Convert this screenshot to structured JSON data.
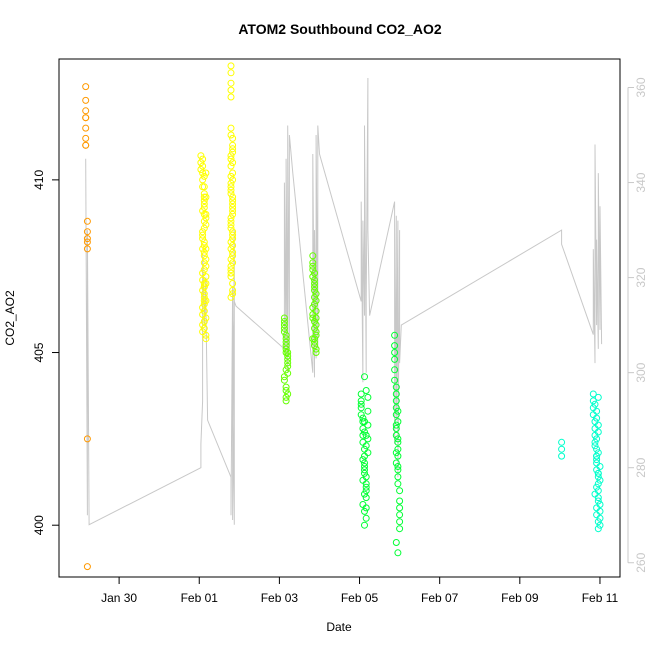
{
  "chart_data": {
    "type": "scatter",
    "title": "ATOM2 Southbound CO2_AO2",
    "xlabel": "Date",
    "ylabel": "CO2_AO2",
    "x_range_days": [
      "2018-01-28T12:00",
      "2018-02-11T12:00"
    ],
    "ylim": [
      398.5,
      413.5
    ],
    "ylim_right": [
      257,
      366
    ],
    "x_ticks": [
      {
        "label": "Jan 30",
        "date": "2018-01-30"
      },
      {
        "label": "Feb 01",
        "date": "2018-02-01"
      },
      {
        "label": "Feb 03",
        "date": "2018-02-03"
      },
      {
        "label": "Feb 05",
        "date": "2018-02-05"
      },
      {
        "label": "Feb 07",
        "date": "2018-02-07"
      },
      {
        "label": "Feb 09",
        "date": "2018-02-09"
      },
      {
        "label": "Feb 11",
        "date": "2018-02-11"
      }
    ],
    "y_ticks_left": [
      400,
      405,
      410
    ],
    "y_ticks_right": [
      260,
      280,
      300,
      320,
      340,
      360
    ],
    "grid": false,
    "right_axis_color": "#c8c8c8",
    "line_color": "#c8c8c8",
    "series": [
      {
        "color": "#ff9900",
        "x": [
          "2018-01-29T04:00",
          "2018-01-29T04:00",
          "2018-01-29T04:00",
          "2018-01-29T04:00",
          "2018-01-29T04:00",
          "2018-01-29T04:00",
          "2018-01-29T04:00",
          "2018-01-29T04:00",
          "2018-01-29T04:00",
          "2018-01-29T05:00",
          "2018-01-29T05:00",
          "2018-01-29T05:00",
          "2018-01-29T05:00",
          "2018-01-29T05:00",
          "2018-01-29T05:00",
          "2018-01-29T05:00"
        ],
        "y": [
          412.7,
          412.3,
          412.0,
          411.8,
          411.5,
          411.0,
          411.0,
          411.2,
          411.8,
          408.8,
          408.5,
          408.3,
          408.0,
          408.2,
          402.5,
          398.8
        ]
      },
      {
        "color": "#ffff00",
        "x": [
          "2018-02-01T01:00",
          "2018-02-01T01:00",
          "2018-02-01T01:00",
          "2018-02-01T02:00",
          "2018-02-01T02:00",
          "2018-02-01T02:00",
          "2018-02-01T03:00",
          "2018-02-01T03:00",
          "2018-02-01T03:00",
          "2018-02-01T04:00",
          "2018-02-01T04:00",
          "2018-02-01T02:00",
          "2018-02-01T02:00",
          "2018-02-01T03:00",
          "2018-02-01T03:00",
          "2018-02-01T04:00",
          "2018-02-01T04:00",
          "2018-02-01T02:00",
          "2018-02-01T02:00",
          "2018-02-01T03:00",
          "2018-02-01T03:00",
          "2018-02-01T03:00",
          "2018-02-01T02:00",
          "2018-02-01T02:00",
          "2018-02-01T03:00",
          "2018-02-01T03:00",
          "2018-02-01T04:00",
          "2018-02-01T02:00",
          "2018-02-01T03:00",
          "2018-02-01T03:00",
          "2018-02-01T02:00",
          "2018-02-01T03:00",
          "2018-02-01T04:00",
          "2018-02-01T02:00",
          "2018-02-01T03:00",
          "2018-02-01T03:00",
          "2018-02-01T03:00",
          "2018-02-01T02:00",
          "2018-02-01T03:00",
          "2018-02-01T04:00",
          "2018-02-01T02:00",
          "2018-02-01T03:00",
          "2018-02-01T03:00",
          "2018-02-01T03:00",
          "2018-02-01T04:00",
          "2018-02-01T02:00",
          "2018-02-01T03:00",
          "2018-02-01T03:00",
          "2018-02-01T03:00",
          "2018-02-01T03:00",
          "2018-02-01T03:00",
          "2018-02-01T03:00",
          "2018-02-01T02:00",
          "2018-02-01T02:00",
          "2018-02-01T04:00",
          "2018-02-01T04:00",
          "2018-02-01T04:00",
          "2018-02-01T04:00",
          "2018-02-01T04:00",
          "2018-02-01T04:00",
          "2018-02-01T19:00",
          "2018-02-01T19:00",
          "2018-02-01T19:00",
          "2018-02-01T19:00",
          "2018-02-01T19:00",
          "2018-02-01T19:00",
          "2018-02-01T19:00",
          "2018-02-01T20:00",
          "2018-02-01T20:00",
          "2018-02-01T19:00",
          "2018-02-01T19:00",
          "2018-02-01T20:00",
          "2018-02-01T20:00",
          "2018-02-01T19:00",
          "2018-02-01T19:00",
          "2018-02-01T20:00",
          "2018-02-01T20:00",
          "2018-02-01T20:00",
          "2018-02-01T19:00",
          "2018-02-01T19:00",
          "2018-02-01T20:00",
          "2018-02-01T19:00",
          "2018-02-01T19:00",
          "2018-02-01T20:00",
          "2018-02-01T20:00",
          "2018-02-01T19:00",
          "2018-02-01T19:00",
          "2018-02-01T20:00",
          "2018-02-01T20:00",
          "2018-02-01T19:00",
          "2018-02-01T20:00",
          "2018-02-01T20:00",
          "2018-02-01T19:00",
          "2018-02-01T19:00",
          "2018-02-01T20:00",
          "2018-02-01T19:00",
          "2018-02-01T20:00",
          "2018-02-01T20:00",
          "2018-02-01T19:00",
          "2018-02-01T19:00",
          "2018-02-01T20:00",
          "2018-02-01T19:00",
          "2018-02-01T20:00",
          "2018-02-01T20:00",
          "2018-02-01T19:00",
          "2018-02-01T20:00",
          "2018-02-01T19:00",
          "2018-02-01T20:00",
          "2018-02-01T19:00",
          "2018-02-01T20:00"
        ],
        "y": [
          410.7,
          410.5,
          410.3,
          410.2,
          410.0,
          409.8,
          409.5,
          409.3,
          409.0,
          408.9,
          408.7,
          408.5,
          408.3,
          408.1,
          407.9,
          407.7,
          407.5,
          407.3,
          407.1,
          406.9,
          406.7,
          406.5,
          406.3,
          406.1,
          405.9,
          405.7,
          405.5,
          406.8,
          407.0,
          406.2,
          405.8,
          406.4,
          407.2,
          408.0,
          408.6,
          409.2,
          409.8,
          410.4,
          409.6,
          409.0,
          408.4,
          407.8,
          407.4,
          406.6,
          406.0,
          405.6,
          406.9,
          407.6,
          408.2,
          408.8,
          409.4,
          410.1,
          410.6,
          409.1,
          407.0,
          406.5,
          408.0,
          409.5,
          410.2,
          405.4,
          413.3,
          413.1,
          412.8,
          412.6,
          412.4,
          411.5,
          411.3,
          411.0,
          410.8,
          410.6,
          410.4,
          410.2,
          410.0,
          409.8,
          409.6,
          409.4,
          409.2,
          409.0,
          408.8,
          408.6,
          408.4,
          408.2,
          408.0,
          407.8,
          407.6,
          407.4,
          407.2,
          407.0,
          406.8,
          406.6,
          411.2,
          410.9,
          410.1,
          409.7,
          409.3,
          408.9,
          408.5,
          408.1,
          407.7,
          407.3,
          410.5,
          409.9,
          409.1,
          408.3,
          407.5,
          406.7,
          410.7,
          409.5,
          408.7,
          407.9
        ],
        "y_alt": []
      },
      {
        "color": "#66ff00",
        "x": [
          "2018-02-03T03:00",
          "2018-02-03T03:00",
          "2018-02-03T03:00",
          "2018-02-03T04:00",
          "2018-02-03T04:00",
          "2018-02-03T04:00",
          "2018-02-03T05:00",
          "2018-02-03T05:00",
          "2018-02-03T05:00",
          "2018-02-03T03:00",
          "2018-02-03T04:00",
          "2018-02-03T05:00",
          "2018-02-03T03:00",
          "2018-02-03T04:00",
          "2018-02-03T05:00",
          "2018-02-03T04:00",
          "2018-02-03T03:00",
          "2018-02-03T04:00",
          "2018-02-03T05:00",
          "2018-02-03T04:00",
          "2018-02-03T03:00",
          "2018-02-03T04:00",
          "2018-02-03T05:00",
          "2018-02-03T04:00",
          "2018-02-03T04:00",
          "2018-02-03T20:00",
          "2018-02-03T20:00",
          "2018-02-03T20:00",
          "2018-02-03T20:00",
          "2018-02-03T21:00",
          "2018-02-03T21:00",
          "2018-02-03T21:00",
          "2018-02-03T21:00",
          "2018-02-03T22:00",
          "2018-02-03T22:00",
          "2018-02-03T22:00",
          "2018-02-03T22:00",
          "2018-02-03T20:00",
          "2018-02-03T21:00",
          "2018-02-03T22:00",
          "2018-02-03T20:00",
          "2018-02-03T21:00",
          "2018-02-03T22:00",
          "2018-02-03T20:00",
          "2018-02-03T21:00",
          "2018-02-03T22:00",
          "2018-02-03T21:00",
          "2018-02-03T21:00",
          "2018-02-03T22:00",
          "2018-02-03T20:00",
          "2018-02-03T21:00",
          "2018-02-03T22:00",
          "2018-02-03T21:00",
          "2018-02-03T20:00",
          "2018-02-03T21:00"
        ],
        "y": [
          406.0,
          405.8,
          405.6,
          405.4,
          405.2,
          405.0,
          404.8,
          404.6,
          404.4,
          404.2,
          404.0,
          403.8,
          405.7,
          405.3,
          404.9,
          404.5,
          405.9,
          405.1,
          404.7,
          403.6,
          404.3,
          405.5,
          405.0,
          403.9,
          403.7,
          407.8,
          407.6,
          407.4,
          407.2,
          407.0,
          406.8,
          406.6,
          406.4,
          406.2,
          406.0,
          405.8,
          405.6,
          405.4,
          405.2,
          405.0,
          407.5,
          407.1,
          406.7,
          406.3,
          405.9,
          405.5,
          405.3,
          406.9,
          406.5,
          406.1,
          405.7,
          405.1,
          407.3,
          406.0,
          405.4
        ]
      },
      {
        "color": "#00ff33",
        "x": [
          "2018-02-05T01:00",
          "2018-02-05T01:00",
          "2018-02-05T01:00",
          "2018-02-05T01:00",
          "2018-02-05T02:00",
          "2018-02-05T02:00",
          "2018-02-05T02:00",
          "2018-02-05T02:00",
          "2018-02-05T03:00",
          "2018-02-05T03:00",
          "2018-02-05T03:00",
          "2018-02-05T03:00",
          "2018-02-05T04:00",
          "2018-02-05T04:00",
          "2018-02-05T04:00",
          "2018-02-05T04:00",
          "2018-02-05T01:00",
          "2018-02-05T02:00",
          "2018-02-05T03:00",
          "2018-02-05T04:00",
          "2018-02-05T05:00",
          "2018-02-05T05:00",
          "2018-02-05T05:00",
          "2018-02-05T05:00",
          "2018-02-05T02:00",
          "2018-02-05T03:00",
          "2018-02-05T04:00",
          "2018-02-05T02:00",
          "2018-02-05T03:00",
          "2018-02-05T04:00",
          "2018-02-05T03:00",
          "2018-02-05T03:00",
          "2018-02-05T04:00",
          "2018-02-05T05:00",
          "2018-02-05T03:00",
          "2018-02-05T02:00",
          "2018-02-05T03:00",
          "2018-02-05T04:00",
          "2018-02-05T04:00",
          "2018-02-05T03:00",
          "2018-02-05T21:00",
          "2018-02-05T21:00",
          "2018-02-05T21:00",
          "2018-02-05T21:00",
          "2018-02-05T22:00",
          "2018-02-05T22:00",
          "2018-02-05T22:00",
          "2018-02-05T22:00",
          "2018-02-05T23:00",
          "2018-02-05T23:00",
          "2018-02-05T23:00",
          "2018-02-05T23:00",
          "2018-02-06T00:00",
          "2018-02-06T00:00",
          "2018-02-06T00:00",
          "2018-02-06T00:00",
          "2018-02-05T22:00",
          "2018-02-05T23:00",
          "2018-02-05T22:00",
          "2018-02-05T23:00",
          "2018-02-05T22:00",
          "2018-02-05T23:00",
          "2018-02-05T22:00",
          "2018-02-05T23:00",
          "2018-02-05T22:00",
          "2018-02-05T23:00",
          "2018-02-05T22:00",
          "2018-02-05T23:00",
          "2018-02-05T22:00",
          "2018-02-05T23:00",
          "2018-02-05T21:00",
          "2018-02-05T21:00",
          "2018-02-06T00:00",
          "2018-02-06T00:00"
        ],
        "y": [
          403.8,
          403.6,
          403.4,
          403.2,
          403.0,
          402.8,
          402.6,
          402.4,
          402.2,
          402.0,
          401.8,
          401.6,
          401.4,
          401.2,
          401.0,
          400.8,
          403.5,
          403.1,
          402.7,
          402.3,
          403.7,
          403.3,
          402.9,
          402.5,
          401.9,
          401.5,
          401.1,
          400.6,
          400.4,
          400.2,
          400.0,
          404.3,
          403.9,
          402.1,
          401.7,
          401.3,
          400.9,
          400.5,
          402.6,
          403.0,
          405.5,
          405.2,
          404.8,
          404.5,
          404.0,
          403.6,
          403.2,
          402.8,
          402.4,
          402.0,
          401.6,
          401.2,
          400.5,
          400.3,
          400.1,
          399.9,
          403.4,
          403.0,
          402.6,
          402.2,
          401.8,
          401.4,
          399.5,
          399.2,
          402.9,
          402.5,
          402.1,
          401.7,
          403.8,
          403.3,
          405.0,
          404.2,
          401.0,
          400.7
        ]
      },
      {
        "color": "#00ffcc",
        "x": [
          "2018-02-10T01:00",
          "2018-02-10T01:00",
          "2018-02-10T01:00",
          "2018-02-10T20:00",
          "2018-02-10T20:00",
          "2018-02-10T20:00",
          "2018-02-10T20:00",
          "2018-02-10T21:00",
          "2018-02-10T21:00",
          "2018-02-10T21:00",
          "2018-02-10T21:00",
          "2018-02-10T22:00",
          "2018-02-10T22:00",
          "2018-02-10T22:00",
          "2018-02-10T22:00",
          "2018-02-10T23:00",
          "2018-02-10T23:00",
          "2018-02-10T23:00",
          "2018-02-10T23:00",
          "2018-02-11T00:00",
          "2018-02-11T00:00",
          "2018-02-11T00:00",
          "2018-02-11T00:00",
          "2018-02-10T21:00",
          "2018-02-10T22:00",
          "2018-02-10T23:00",
          "2018-02-10T21:00",
          "2018-02-10T22:00",
          "2018-02-10T23:00",
          "2018-02-10T22:00",
          "2018-02-10T23:00",
          "2018-02-10T22:00",
          "2018-02-10T23:00",
          "2018-02-10T22:00",
          "2018-02-10T23:00",
          "2018-02-10T22:00",
          "2018-02-10T23:00",
          "2018-02-11T00:00",
          "2018-02-11T00:00",
          "2018-02-10T21:00",
          "2018-02-10T22:00",
          "2018-02-10T23:00",
          "2018-02-10T23:00",
          "2018-02-10T23:00",
          "2018-02-10T22:00"
        ],
        "y": [
          402.4,
          402.2,
          402.0,
          403.8,
          403.6,
          403.4,
          403.2,
          403.0,
          402.8,
          402.6,
          402.4,
          402.2,
          402.0,
          401.8,
          401.6,
          401.4,
          401.2,
          401.0,
          400.8,
          400.6,
          400.4,
          400.2,
          400.0,
          403.5,
          403.1,
          402.7,
          402.3,
          401.9,
          401.5,
          401.1,
          400.7,
          400.3,
          399.9,
          403.3,
          402.9,
          402.5,
          402.1,
          401.7,
          401.3,
          400.9,
          400.5,
          403.7,
          401.5,
          400.1,
          402.0
        ]
      }
    ],
    "line_series": {
      "x": [
        "2018-01-29T04:00",
        "2018-01-29T05:00",
        "2018-01-29T05:00",
        "2018-01-29T06:00",
        "2018-02-01T01:00",
        "2018-02-01T01:00",
        "2018-02-01T02:00",
        "2018-02-01T02:00",
        "2018-02-01T03:00",
        "2018-02-01T03:00",
        "2018-02-01T04:00",
        "2018-02-01T04:00",
        "2018-02-01T05:00",
        "2018-02-01T19:00",
        "2018-02-01T19:00",
        "2018-02-01T20:00",
        "2018-02-01T20:00",
        "2018-02-01T21:00",
        "2018-02-01T21:00",
        "2018-02-01T20:00",
        "2018-02-01T20:00",
        "2018-02-01T21:00",
        "2018-02-01T22:00",
        "2018-02-03T03:00",
        "2018-02-03T03:00",
        "2018-02-03T04:00",
        "2018-02-03T04:00",
        "2018-02-03T05:00",
        "2018-02-03T05:00",
        "2018-02-03T06:00",
        "2018-02-03T06:00",
        "2018-02-03T08:00",
        "2018-02-03T20:00",
        "2018-02-03T20:00",
        "2018-02-03T21:00",
        "2018-02-03T21:00",
        "2018-02-03T22:00",
        "2018-02-03T22:00",
        "2018-02-03T23:00",
        "2018-02-03T23:00",
        "2018-02-04T00:00",
        "2018-02-05T01:00",
        "2018-02-05T01:00",
        "2018-02-05T02:00",
        "2018-02-05T02:00",
        "2018-02-05T03:00",
        "2018-02-05T03:00",
        "2018-02-05T04:00",
        "2018-02-05T04:00",
        "2018-02-05T05:00",
        "2018-02-05T05:00",
        "2018-02-05T06:00",
        "2018-02-05T21:00",
        "2018-02-05T21:00",
        "2018-02-05T22:00",
        "2018-02-05T22:00",
        "2018-02-05T23:00",
        "2018-02-05T23:00",
        "2018-02-06T00:00",
        "2018-02-06T00:00",
        "2018-02-06T01:00",
        "2018-02-10T01:00",
        "2018-02-10T01:00",
        "2018-02-10T20:00",
        "2018-02-10T20:00",
        "2018-02-10T21:00",
        "2018-02-10T21:00",
        "2018-02-10T22:00",
        "2018-02-10T22:00",
        "2018-02-10T23:00",
        "2018-02-10T23:00",
        "2018-02-11T00:00",
        "2018-02-11T00:00",
        "2018-02-11T01:00"
      ],
      "y_right": [
        345,
        270,
        330,
        268,
        280,
        285,
        294,
        325,
        312,
        310,
        320,
        314,
        290,
        278,
        270,
        318,
        269,
        330,
        268,
        300,
        302,
        315,
        314,
        305,
        340,
        303,
        345,
        300,
        352,
        305,
        350,
        342,
        300,
        346,
        299,
        330,
        303,
        350,
        305,
        352,
        346,
        315,
        336,
        298,
        332,
        312,
        352,
        300,
        315,
        362,
        330,
        312,
        336,
        285,
        333,
        290,
        332,
        278,
        330,
        302,
        310,
        330,
        327,
        308,
        326,
        302,
        348,
        310,
        328,
        305,
        342,
        309,
        335,
        306
      ]
    }
  }
}
